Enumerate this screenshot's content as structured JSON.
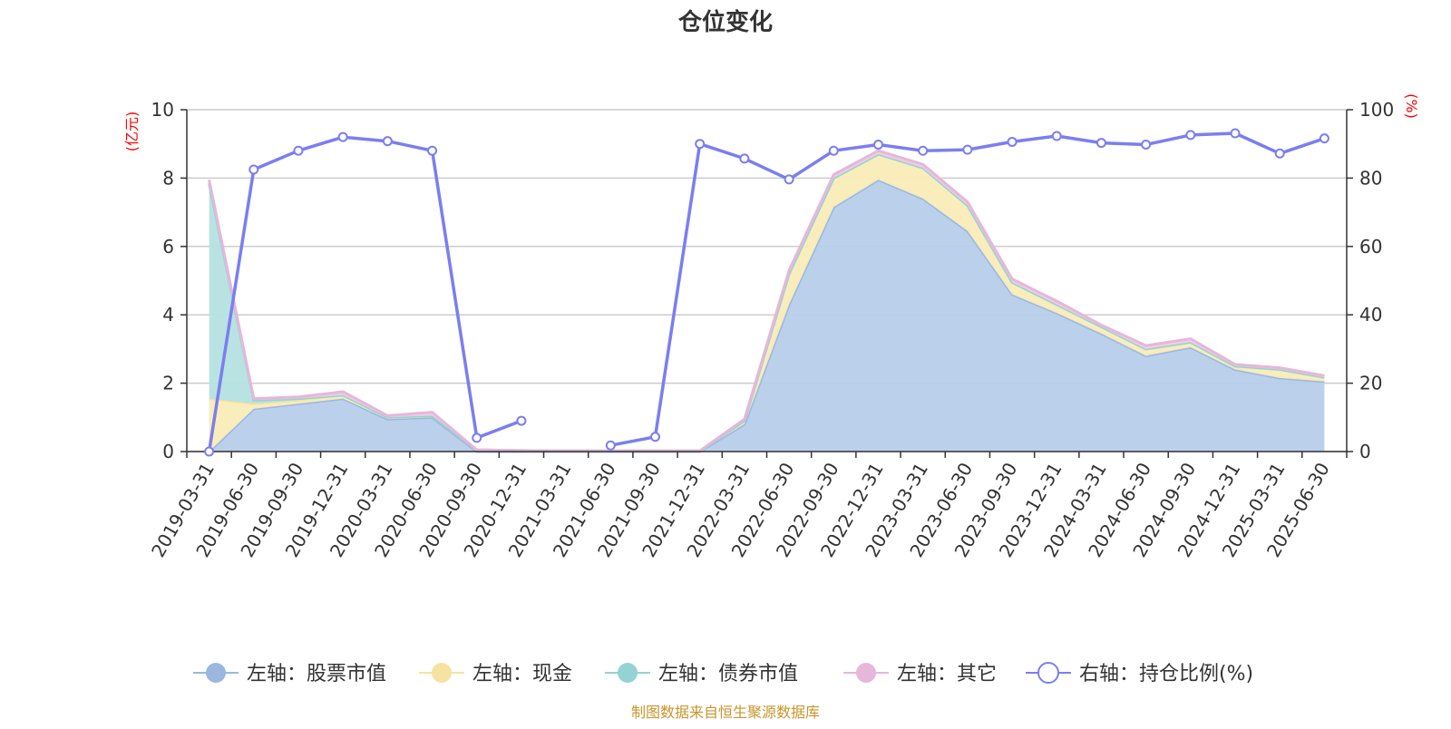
{
  "chart_data": {
    "type": "area",
    "title": "仓位变化",
    "source": "制图数据来自恒生聚源数据库",
    "categories": [
      "2019-03-31",
      "2019-06-30",
      "2019-09-30",
      "2019-12-31",
      "2020-03-31",
      "2020-06-30",
      "2020-09-30",
      "2020-12-31",
      "2021-03-31",
      "2021-06-30",
      "2021-09-30",
      "2021-12-31",
      "2022-03-31",
      "2022-06-30",
      "2022-09-30",
      "2022-12-31",
      "2023-03-31",
      "2023-06-30",
      "2023-09-30",
      "2023-12-31",
      "2024-03-31",
      "2024-06-30",
      "2024-09-30",
      "2024-12-31",
      "2025-03-31",
      "2025-06-30"
    ],
    "y_left": {
      "unit": "(亿元)",
      "range": [
        0,
        10
      ],
      "ticks": [
        "0",
        "2",
        "4",
        "6",
        "8",
        "10"
      ]
    },
    "y_right": {
      "unit": "(%)",
      "range": [
        0,
        100
      ],
      "ticks": [
        "0",
        "20",
        "40",
        "60",
        "80",
        "100"
      ]
    },
    "grid": true,
    "legend_position": "bottom",
    "series": [
      {
        "name": "左轴：股票市值",
        "axis": "left",
        "type": "area",
        "stack": true,
        "color": "#9bb7e0",
        "fill": "#b7cdea",
        "values": [
          0.0,
          1.25,
          1.4,
          1.55,
          0.95,
          1.0,
          0.0,
          0.0,
          0.0,
          0.0,
          0.0,
          0.0,
          0.8,
          4.3,
          7.15,
          7.95,
          7.4,
          6.45,
          4.6,
          4.05,
          3.45,
          2.8,
          3.05,
          2.4,
          2.15,
          2.05
        ]
      },
      {
        "name": "左轴：现金",
        "axis": "left",
        "type": "area",
        "stack": true,
        "color": "#f6e3a1",
        "fill": "#f9ecb8",
        "values": [
          1.55,
          0.15,
          0.1,
          0.1,
          0.05,
          0.05,
          0.05,
          0.03,
          0.02,
          0.02,
          0.02,
          0.02,
          0.1,
          0.9,
          0.85,
          0.75,
          0.9,
          0.75,
          0.35,
          0.25,
          0.2,
          0.2,
          0.15,
          0.1,
          0.25,
          0.12
        ]
      },
      {
        "name": "左轴：债券市值",
        "axis": "left",
        "type": "area",
        "stack": true,
        "color": "#93d3d3",
        "fill": "#b5e1e0",
        "values": [
          6.3,
          0.1,
          0.05,
          0.0,
          0.0,
          0.0,
          0.0,
          0.0,
          0.0,
          0.0,
          0.0,
          0.0,
          0.0,
          0.0,
          0.0,
          0.0,
          0.0,
          0.0,
          0.0,
          0.0,
          0.0,
          0.0,
          0.0,
          0.0,
          0.0,
          0.0
        ]
      },
      {
        "name": "左轴：其它",
        "axis": "left",
        "type": "area",
        "stack": true,
        "color": "#e6b7d9",
        "fill": "#f0cde6",
        "values": [
          0.1,
          0.05,
          0.05,
          0.1,
          0.05,
          0.1,
          0.0,
          0.0,
          0.0,
          0.0,
          0.0,
          0.0,
          0.05,
          0.1,
          0.1,
          0.1,
          0.1,
          0.1,
          0.1,
          0.1,
          0.05,
          0.1,
          0.1,
          0.05,
          0.05,
          0.05
        ]
      },
      {
        "name": "右轴：持仓比例(%)",
        "axis": "right",
        "type": "line",
        "color": "#7b7ef0",
        "values": [
          0.0,
          82.5,
          88.0,
          92.0,
          90.8,
          88.0,
          4.0,
          9.0,
          null,
          1.8,
          4.3,
          90.0,
          85.7,
          79.6,
          88.0,
          89.8,
          88.0,
          88.3,
          90.6,
          92.3,
          90.3,
          89.8,
          92.6,
          93.1,
          87.2,
          91.6
        ]
      }
    ]
  }
}
